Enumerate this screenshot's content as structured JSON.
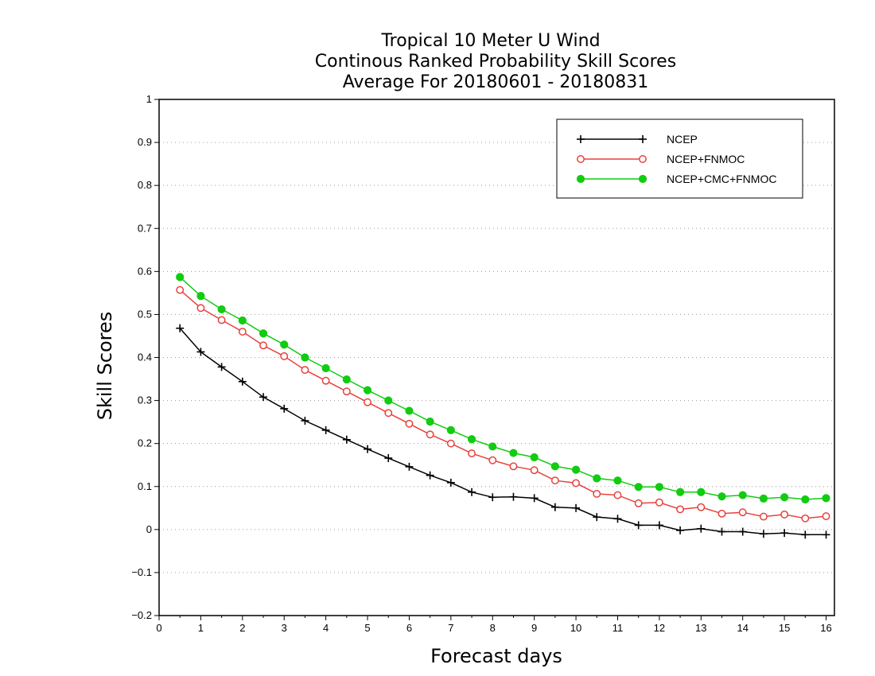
{
  "chart_data": {
    "type": "line",
    "title": [
      "Tropical 10 Meter U Wind",
      "Continous Ranked Probability Skill Scores",
      "Average For 20180601 - 20180831"
    ],
    "xlabel": "Forecast days",
    "ylabel": "Skill Scores",
    "xlim": [
      0,
      16.2
    ],
    "ylim": [
      -0.2,
      1
    ],
    "xticks": [
      0,
      1,
      2,
      3,
      4,
      5,
      6,
      7,
      8,
      9,
      10,
      11,
      12,
      13,
      14,
      15,
      16
    ],
    "yticks": [
      -0.2,
      -0.1,
      0,
      0.1,
      0.2,
      0.3,
      0.4,
      0.5,
      0.6,
      0.7,
      0.8,
      0.9,
      1
    ],
    "ytick_labels": [
      "−0.2",
      "−0.1",
      "0",
      "0.1",
      "0.2",
      "0.3",
      "0.4",
      "0.5",
      "0.6",
      "0.7",
      "0.8",
      "0.9",
      "1"
    ],
    "grid": "horizontal dotted",
    "legend_position": "top-right",
    "x": [
      0.5,
      1,
      1.5,
      2,
      2.5,
      3,
      3.5,
      4,
      4.5,
      5,
      5.5,
      6,
      6.5,
      7,
      7.5,
      8,
      8.5,
      9,
      9.5,
      10,
      10.5,
      11,
      11.5,
      12,
      12.5,
      13,
      13.5,
      14,
      14.5,
      15,
      15.5,
      16
    ],
    "series": [
      {
        "name": "NCEP",
        "color": "#000000",
        "marker": "plus",
        "values": [
          0.468,
          0.413,
          0.378,
          0.344,
          0.308,
          0.281,
          0.253,
          0.231,
          0.209,
          0.187,
          0.166,
          0.146,
          0.126,
          0.109,
          0.087,
          0.075,
          0.076,
          0.073,
          0.052,
          0.05,
          0.029,
          0.025,
          0.01,
          0.01,
          -0.002,
          0.002,
          -0.005,
          -0.005,
          -0.01,
          -0.008,
          -0.012,
          -0.012
        ]
      },
      {
        "name": "NCEP+FNMOC",
        "color": "#e8413c",
        "marker": "open-circle",
        "values": [
          0.557,
          0.515,
          0.487,
          0.46,
          0.428,
          0.403,
          0.371,
          0.346,
          0.321,
          0.296,
          0.271,
          0.246,
          0.221,
          0.2,
          0.177,
          0.161,
          0.147,
          0.138,
          0.114,
          0.108,
          0.083,
          0.08,
          0.061,
          0.063,
          0.047,
          0.052,
          0.037,
          0.04,
          0.03,
          0.035,
          0.026,
          0.031
        ]
      },
      {
        "name": "NCEP+CMC+FNMOC",
        "color": "#11cc11",
        "marker": "filled-circle",
        "values": [
          0.587,
          0.543,
          0.512,
          0.486,
          0.456,
          0.43,
          0.4,
          0.375,
          0.349,
          0.324,
          0.3,
          0.276,
          0.251,
          0.231,
          0.21,
          0.193,
          0.178,
          0.168,
          0.147,
          0.139,
          0.119,
          0.114,
          0.099,
          0.099,
          0.087,
          0.087,
          0.077,
          0.08,
          0.072,
          0.075,
          0.07,
          0.073
        ]
      }
    ]
  }
}
